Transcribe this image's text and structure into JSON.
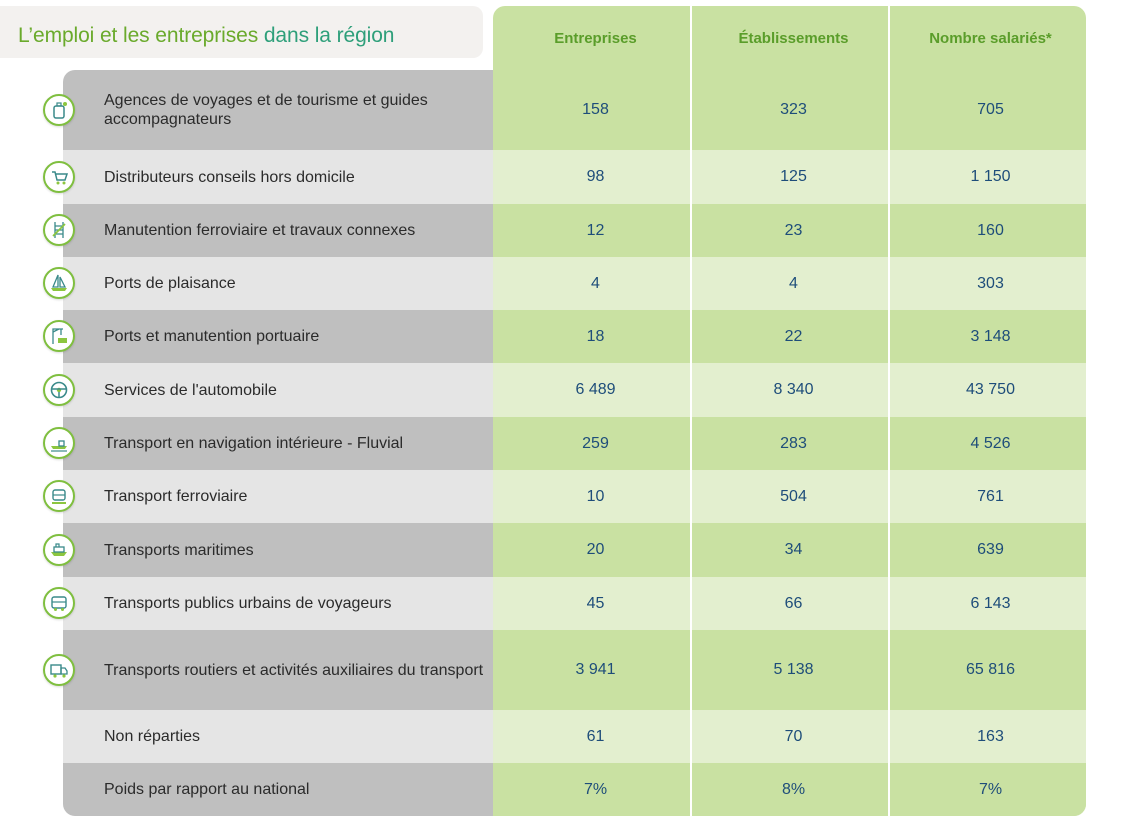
{
  "title": {
    "part1": "L’emploi et les entreprises",
    "part2": "dans la région"
  },
  "headers": [
    "Entreprises",
    "Établissements",
    "Nombre salariés*"
  ],
  "rows": [
    {
      "label": "Agences de voyages et de tourisme et guides accompagnateurs",
      "icon": "suitcase-icon",
      "values": [
        "158",
        "323",
        "705"
      ]
    },
    {
      "label": "Distributeurs conseils hors domicile",
      "icon": "cart-icon",
      "values": [
        "98",
        "125",
        "1 150"
      ]
    },
    {
      "label": "Manutention ferroviaire et travaux connexes",
      "icon": "rail-tools-icon",
      "values": [
        "12",
        "23",
        "160"
      ]
    },
    {
      "label": "Ports de plaisance",
      "icon": "sailboat-icon",
      "values": [
        "4",
        "4",
        "303"
      ]
    },
    {
      "label": "Ports et manutention portuaire",
      "icon": "crane-icon",
      "values": [
        "18",
        "22",
        "3 148"
      ]
    },
    {
      "label": "Services de l'automobile",
      "icon": "steering-wheel-icon",
      "values": [
        "6 489",
        "8 340",
        "43 750"
      ]
    },
    {
      "label": "Transport en navigation intérieure - Fluvial",
      "icon": "barge-icon",
      "values": [
        "259",
        "283",
        "4 526"
      ]
    },
    {
      "label": "Transport ferroviaire",
      "icon": "train-icon",
      "values": [
        "10",
        "504",
        "761"
      ]
    },
    {
      "label": "Transports maritimes",
      "icon": "ship-icon",
      "values": [
        "20",
        "34",
        "639"
      ]
    },
    {
      "label": "Transports publics urbains de voyageurs",
      "icon": "bus-icon",
      "values": [
        "45",
        "66",
        "6 143"
      ]
    },
    {
      "label": "Transports routiers et activités auxiliaires du transport",
      "icon": "truck-icon",
      "values": [
        "3 941",
        "5 138",
        "65 816"
      ]
    },
    {
      "label": "Non réparties",
      "icon": "",
      "values": [
        "61",
        "70",
        "163"
      ]
    },
    {
      "label": "Poids par rapport au national",
      "icon": "",
      "values": [
        "7%",
        "8%",
        "7%"
      ]
    }
  ],
  "colors": {
    "accent_green": "#6aaa2c",
    "accent_teal": "#2e9f7a",
    "value_blue": "#1e4d7a"
  }
}
